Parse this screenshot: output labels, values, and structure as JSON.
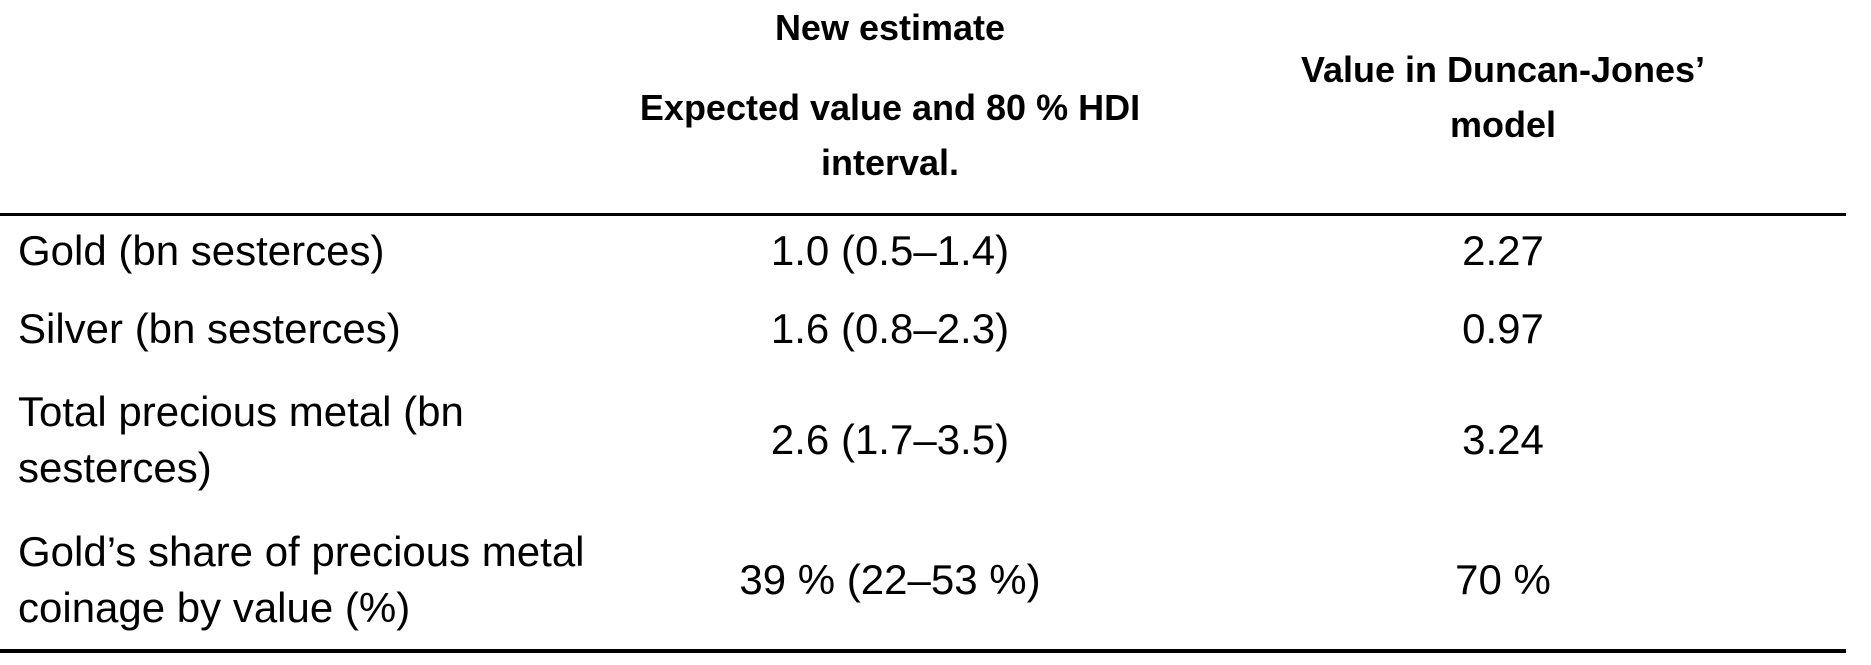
{
  "colors": {
    "background": "#ffffff",
    "text": "#000000",
    "rule": "#000000"
  },
  "table": {
    "header": {
      "row_label_column": "",
      "new_estimate_title": "New estimate",
      "new_estimate_sub_lines": [
        "Expected value and 80 % HDI",
        "interval."
      ],
      "duncan_jones_lines": [
        "Value in Duncan-Jones’",
        "model"
      ]
    },
    "rows": [
      {
        "label_lines": [
          "Gold (bn sesterces)"
        ],
        "new_estimate": "1.0 (0.5–1.4)",
        "duncan_jones": "2.27"
      },
      {
        "label_lines": [
          "Silver (bn sesterces)"
        ],
        "new_estimate": "1.6 (0.8–2.3)",
        "duncan_jones": "0.97"
      },
      {
        "label_lines": [
          "Total precious metal (bn",
          "sesterces)"
        ],
        "new_estimate": "2.6 (1.7–3.5)",
        "duncan_jones": "3.24"
      },
      {
        "label_lines": [
          "Gold’s share of precious metal",
          "coinage by value (%)"
        ],
        "new_estimate": "39 % (22–53 %)",
        "duncan_jones": "70 %"
      }
    ]
  }
}
